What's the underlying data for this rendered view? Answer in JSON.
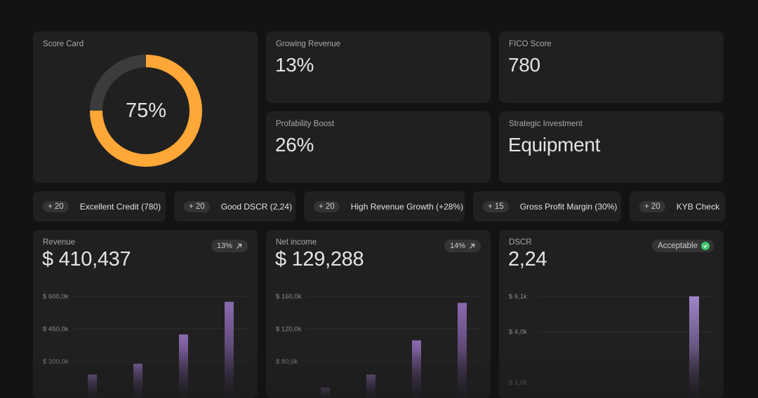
{
  "score_card": {
    "title": "Score Card",
    "value_label": "75%",
    "progress": 0.75,
    "accent": "#ffa737",
    "track": "#3c3c3c"
  },
  "metrics": {
    "growing_revenue": {
      "title": "Growing Revenue",
      "value": "13%"
    },
    "fico": {
      "title": "FICO Score",
      "value": "780"
    },
    "profitability": {
      "title": "Profability Boost",
      "value": "26%"
    },
    "strategic": {
      "title": "Strategic Investment",
      "value": "Equipment"
    }
  },
  "pills": [
    {
      "badge": "+ 20",
      "label": "Excellent Credit (780)"
    },
    {
      "badge": "+ 20",
      "label": "Good DSCR (2,24)"
    },
    {
      "badge": "+ 20",
      "label": "High Revenue Growth (+28%)"
    },
    {
      "badge": "+ 15",
      "label": "Gross Profit Margin (30%)"
    },
    {
      "badge": "+ 20",
      "label": "KYB Check"
    }
  ],
  "revenue": {
    "title": "Revenue",
    "value": "$ 410,437",
    "trend": "13%",
    "trend_icon": "arrow-up-right-icon"
  },
  "net_income": {
    "title": "Net income",
    "value": "$ 129,288",
    "trend": "14%",
    "trend_icon": "arrow-up-right-icon"
  },
  "dscr": {
    "title": "DSCR",
    "value": "2,24",
    "status": "Acceptable",
    "status_icon": "check-circle-icon",
    "status_color": "#3ec46d"
  },
  "chart_data": [
    {
      "type": "bar",
      "series": [
        {
          "values": [
            240000,
            290000,
            425000,
            575000
          ]
        }
      ],
      "tick_labels": [
        "$ 600,0k",
        "$ 450,0k",
        "$ 300,0k"
      ],
      "ticks": [
        600000,
        450000,
        300000
      ],
      "ylim": [
        0,
        600000
      ],
      "grid": true,
      "bar_color": "#8b6bb0"
    },
    {
      "type": "bar",
      "series": [
        {
          "values": [
            48000,
            64000,
            106000,
            152000
          ]
        }
      ],
      "tick_labels": [
        "$ 160,0k",
        "$ 120,0k",
        "$ 80,0k"
      ],
      "ticks": [
        160000,
        120000,
        80000
      ],
      "ylim": [
        0,
        160000
      ],
      "grid": true,
      "bar_color": "#8b6bb0"
    },
    {
      "type": "bar",
      "series": [
        {
          "values": [
            6100
          ]
        }
      ],
      "tick_labels": [
        "$ 6,1k",
        "$ 4,0k",
        "$ 1,0k"
      ],
      "ticks": [
        6100,
        4000,
        1000
      ],
      "ylim": [
        -800,
        6100
      ],
      "grid": true,
      "bar_color": "#9f86c8"
    }
  ]
}
